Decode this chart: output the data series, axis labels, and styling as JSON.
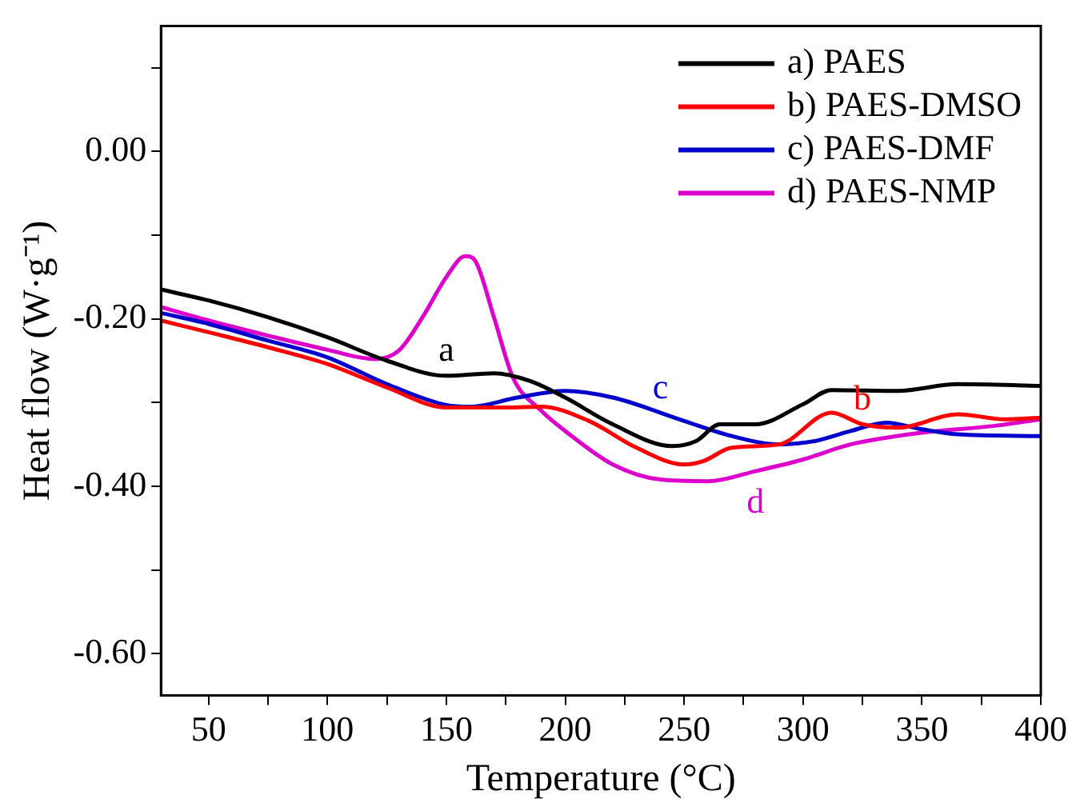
{
  "chart_data": {
    "type": "line",
    "xlabel": "Temperature (°C)",
    "ylabel": "Heat flow (W·g⁻¹)",
    "xlim": [
      30,
      400
    ],
    "xticks": [
      50,
      {
        "value": 75,
        "label": null
      },
      100,
      {
        "value": 125,
        "label": null
      },
      150,
      {
        "value": 175,
        "label": null
      },
      200,
      {
        "value": 225,
        "label": null
      },
      250,
      {
        "value": 275,
        "label": null
      },
      300,
      {
        "value": 325,
        "label": null
      },
      350,
      {
        "value": 375,
        "label": null
      },
      400
    ],
    "ylim": [
      -0.65,
      0.15
    ],
    "yticks": [
      {
        "value": -0.6,
        "label": "-0.60"
      },
      {
        "value": -0.5,
        "label": null
      },
      {
        "value": -0.4,
        "label": "-0.40"
      },
      {
        "value": -0.3,
        "label": null
      },
      {
        "value": -0.2,
        "label": "-0.20"
      },
      {
        "value": -0.1,
        "label": null
      },
      {
        "value": 0,
        "label": "0.00"
      },
      {
        "value": 0.1,
        "label": null
      }
    ],
    "grid": false,
    "legend": "top right",
    "marker": "none",
    "line_style": "solid",
    "series": [
      {
        "name": "a) PAES",
        "color": "#000000",
        "x": [
          30,
          50,
          75,
          100,
          125,
          150,
          170,
          185,
          200,
          220,
          245,
          255,
          265,
          280,
          300,
          312,
          340,
          365,
          400
        ],
        "values": [
          -0.165,
          -0.178,
          -0.198,
          -0.222,
          -0.25,
          -0.268,
          -0.265,
          -0.274,
          -0.294,
          -0.326,
          -0.352,
          -0.346,
          -0.326,
          -0.326,
          -0.302,
          -0.285,
          -0.286,
          -0.278,
          -0.28
        ]
      },
      {
        "name": "b) PAES-DMSO",
        "color": "#ff0000",
        "x": [
          30,
          50,
          75,
          100,
          125,
          150,
          175,
          190,
          210,
          230,
          250,
          258,
          270,
          290,
          312,
          325,
          340,
          365,
          385,
          400
        ],
        "values": [
          -0.202,
          -0.216,
          -0.234,
          -0.254,
          -0.282,
          -0.306,
          -0.306,
          -0.305,
          -0.322,
          -0.354,
          -0.374,
          -0.37,
          -0.354,
          -0.35,
          -0.312,
          -0.326,
          -0.33,
          -0.314,
          -0.32,
          -0.318
        ]
      },
      {
        "name": "c) PAES-DMF",
        "color": "#0000cc",
        "x": [
          30,
          50,
          75,
          100,
          125,
          150,
          160,
          180,
          200,
          220,
          250,
          270,
          290,
          305,
          320,
          335,
          350,
          365,
          400
        ],
        "values": [
          -0.193,
          -0.206,
          -0.226,
          -0.246,
          -0.278,
          -0.303,
          -0.305,
          -0.294,
          -0.286,
          -0.294,
          -0.322,
          -0.34,
          -0.35,
          -0.346,
          -0.334,
          -0.324,
          -0.332,
          -0.338,
          -0.34
        ]
      },
      {
        "name": "d) PAES-NMP",
        "color": "#dd00cc",
        "x": [
          30,
          50,
          75,
          100,
          120,
          130,
          140,
          150,
          158,
          162,
          170,
          178,
          190,
          200,
          220,
          240,
          260,
          280,
          300,
          320,
          350,
          380,
          400
        ],
        "values": [
          -0.186,
          -0.202,
          -0.22,
          -0.237,
          -0.248,
          -0.238,
          -0.198,
          -0.15,
          -0.125,
          -0.13,
          -0.198,
          -0.27,
          -0.31,
          -0.334,
          -0.374,
          -0.392,
          -0.394,
          -0.382,
          -0.368,
          -0.35,
          -0.336,
          -0.328,
          -0.32
        ]
      }
    ],
    "annotations": [
      {
        "text": "a",
        "x": 150,
        "y": -0.268
      },
      {
        "text": "b",
        "x": 325,
        "y": -0.326
      },
      {
        "text": "c",
        "x": 240,
        "y": -0.313
      },
      {
        "text": "d",
        "x": 280,
        "y": -0.382
      }
    ]
  }
}
